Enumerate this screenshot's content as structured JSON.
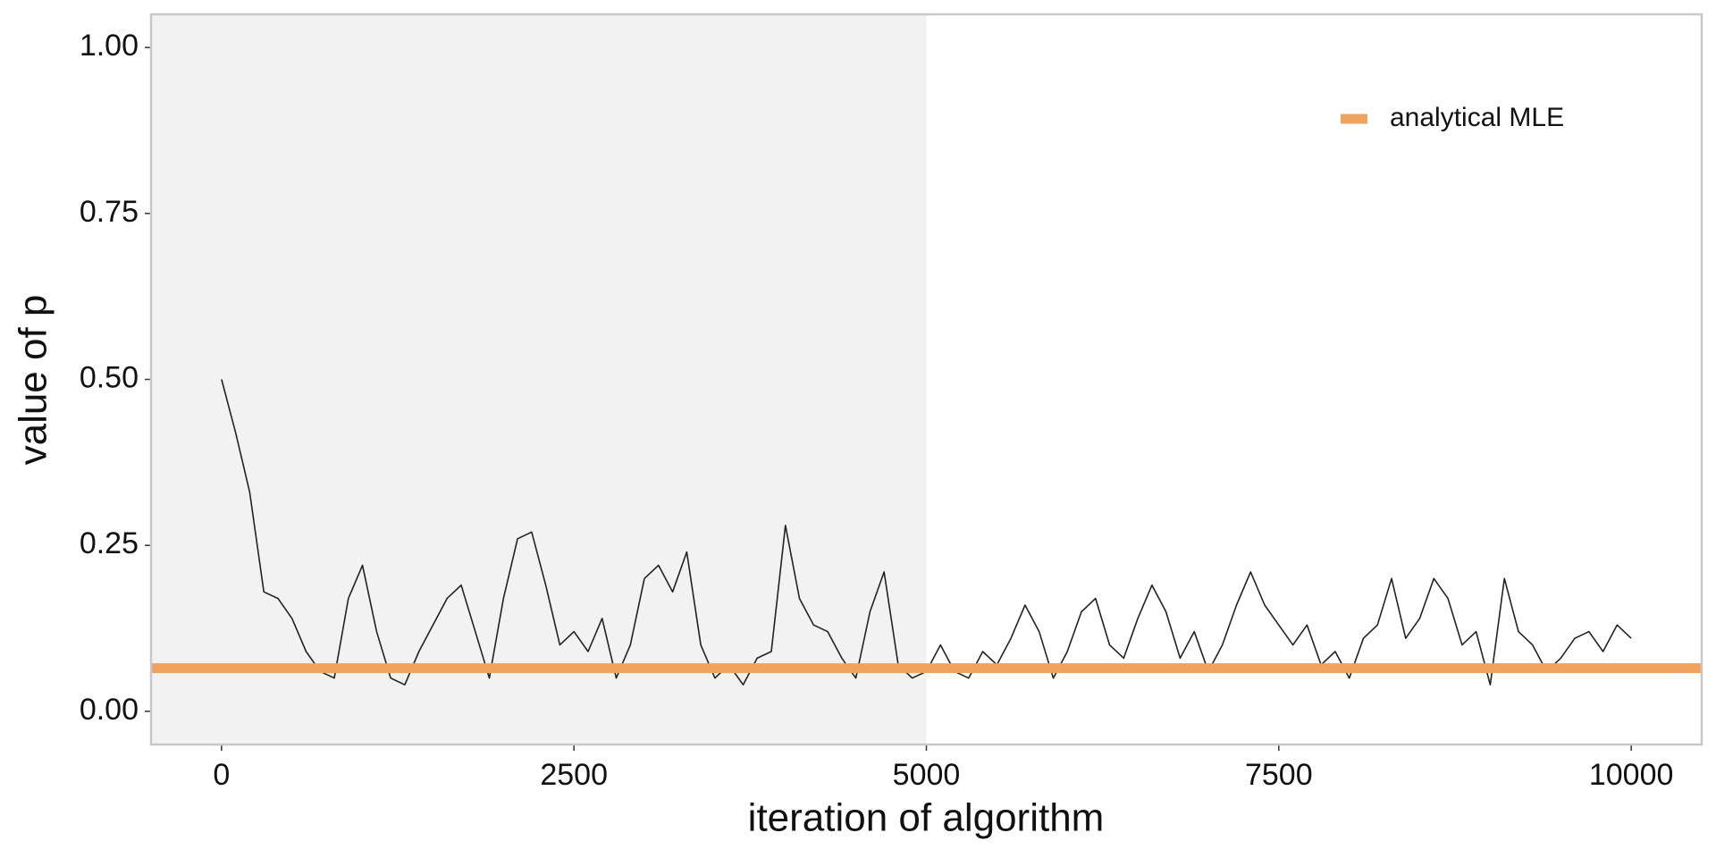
{
  "chart_data": {
    "type": "line",
    "x_label": "iteration of algorithm",
    "y_label": "value of p",
    "x": [
      0,
      100,
      200,
      300,
      400,
      500,
      600,
      700,
      800,
      900,
      1000,
      1100,
      1200,
      1300,
      1400,
      1500,
      1600,
      1700,
      1800,
      1900,
      2000,
      2100,
      2200,
      2300,
      2400,
      2500,
      2600,
      2700,
      2800,
      2900,
      3000,
      3100,
      3200,
      3300,
      3400,
      3500,
      3600,
      3700,
      3800,
      3900,
      4000,
      4100,
      4200,
      4300,
      4400,
      4500,
      4600,
      4700,
      4800,
      4900,
      5000,
      5100,
      5200,
      5300,
      5400,
      5500,
      5600,
      5700,
      5800,
      5900,
      6000,
      6100,
      6200,
      6300,
      6400,
      6500,
      6600,
      6700,
      6800,
      6900,
      7000,
      7100,
      7200,
      7300,
      7400,
      7500,
      7600,
      7700,
      7800,
      7900,
      8000,
      8100,
      8200,
      8300,
      8400,
      8500,
      8600,
      8700,
      8800,
      8900,
      9000,
      9100,
      9200,
      9300,
      9400,
      9500,
      9600,
      9700,
      9800,
      9900,
      10000
    ],
    "series": [
      {
        "color": "#222222",
        "values": [
          0.5,
          0.42,
          0.33,
          0.18,
          0.17,
          0.14,
          0.09,
          0.06,
          0.05,
          0.17,
          0.22,
          0.12,
          0.05,
          0.04,
          0.09,
          0.13,
          0.17,
          0.19,
          0.12,
          0.05,
          0.17,
          0.26,
          0.27,
          0.19,
          0.1,
          0.12,
          0.09,
          0.14,
          0.05,
          0.1,
          0.2,
          0.22,
          0.18,
          0.24,
          0.1,
          0.05,
          0.07,
          0.04,
          0.08,
          0.09,
          0.28,
          0.17,
          0.13,
          0.12,
          0.08,
          0.05,
          0.15,
          0.21,
          0.07,
          0.05,
          0.06,
          0.1,
          0.06,
          0.05,
          0.09,
          0.07,
          0.11,
          0.16,
          0.12,
          0.05,
          0.09,
          0.15,
          0.17,
          0.1,
          0.08,
          0.14,
          0.19,
          0.15,
          0.08,
          0.12,
          0.06,
          0.1,
          0.16,
          0.21,
          0.16,
          0.13,
          0.1,
          0.13,
          0.07,
          0.09,
          0.05,
          0.11,
          0.13,
          0.2,
          0.11,
          0.14,
          0.2,
          0.17,
          0.1,
          0.12,
          0.04,
          0.2,
          0.12,
          0.1,
          0.06,
          0.08,
          0.11,
          0.12,
          0.09,
          0.13,
          0.11
        ]
      }
    ],
    "reference_line": {
      "name": "analytical MLE",
      "value": 0.065,
      "color": "#eea35f"
    },
    "shade_x": [
      -500,
      5000
    ],
    "shade_color": "#f2f2f2",
    "legend": "top-right",
    "xlim": [
      -500,
      10500
    ],
    "xticks": [
      0,
      2500,
      5000,
      7500,
      10000
    ],
    "ylim": [
      -0.05,
      1.05
    ],
    "yticks": [
      {
        "value": 0,
        "label": "0.00"
      },
      {
        "value": 0.25,
        "label": "0.25"
      },
      {
        "value": 0.5,
        "label": "0.50"
      },
      {
        "value": 0.75,
        "label": "0.75"
      },
      {
        "value": 1,
        "label": "1.00"
      }
    ]
  }
}
